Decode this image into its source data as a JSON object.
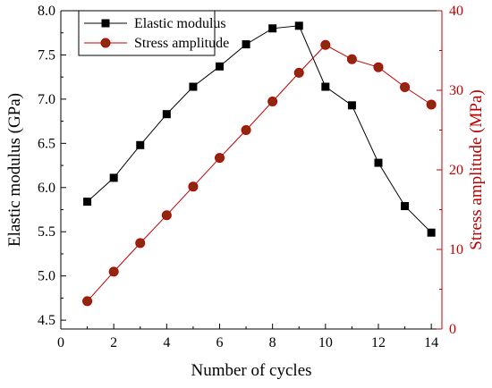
{
  "chart_data": {
    "type": "line",
    "xlabel": "Number of cycles",
    "xlim": [
      0,
      14.4
    ],
    "xticks": [
      0,
      2,
      4,
      6,
      8,
      10,
      12,
      14
    ],
    "y_left": {
      "label": "Elastic modulus (GPa)",
      "lim": [
        4.4,
        8.0
      ],
      "ticks": [
        "4.5",
        "5.0",
        "5.5",
        "6.0",
        "6.5",
        "7.0",
        "7.5",
        "8.0"
      ],
      "color": "#000000"
    },
    "y_right": {
      "label": "Stress amplitude (MPa)",
      "lim": [
        0,
        40
      ],
      "ticks": [
        "0",
        "10",
        "20",
        "30",
        "40"
      ],
      "color": "#c00000"
    },
    "series": [
      {
        "name": "Elastic modulus",
        "axis": "left",
        "marker": "square",
        "color": "#000000",
        "x": [
          1,
          2,
          3,
          4,
          5,
          6,
          7,
          8,
          9,
          10,
          11,
          12,
          13,
          14
        ],
        "values": [
          5.84,
          6.11,
          6.48,
          6.83,
          7.14,
          7.37,
          7.62,
          7.8,
          7.83,
          7.14,
          6.93,
          6.28,
          5.79,
          5.49
        ]
      },
      {
        "name": "Stress amplitude",
        "axis": "right",
        "marker": "circle",
        "color": "#c00000",
        "fill": "#8b2a0e",
        "x": [
          1,
          2,
          3,
          4,
          5,
          6,
          7,
          8,
          9,
          10,
          11,
          12,
          13,
          14
        ],
        "values": [
          3.5,
          7.2,
          10.8,
          14.3,
          17.9,
          21.5,
          25.0,
          28.6,
          32.2,
          35.7,
          33.9,
          32.9,
          30.4,
          28.2
        ]
      }
    ],
    "legend": "top-left",
    "grid": false
  }
}
